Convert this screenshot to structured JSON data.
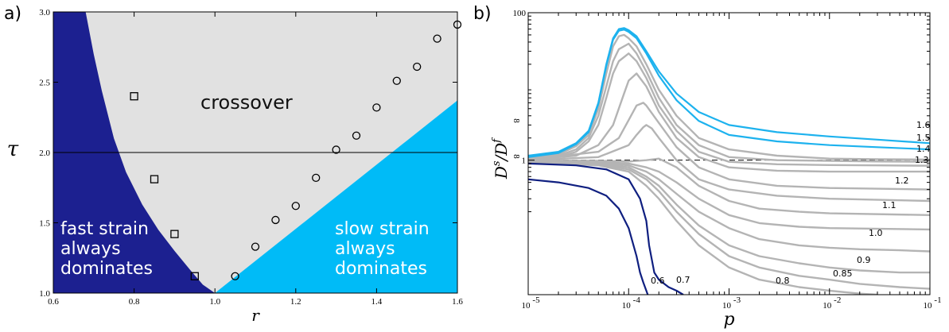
{
  "chart_data": [
    {
      "type": "scatter",
      "panel_label": "a)",
      "xlabel": "r",
      "ylabel": "τ",
      "xlim": [
        0.6,
        1.6
      ],
      "ylim": [
        1.0,
        3.0
      ],
      "x_ticks": [
        "0.6",
        "0.8",
        "1.0",
        "1.2",
        "1.4",
        "1.6"
      ],
      "y_ticks": [
        "1.0",
        "1.5",
        "2.0",
        "2.5",
        "3.0"
      ],
      "reference_line_y": 2.0,
      "regions": [
        {
          "name": "fast",
          "label_lines": [
            "fast strain",
            "always",
            "dominates"
          ],
          "color": "#1c2090"
        },
        {
          "name": "crossover",
          "label_lines": [
            "crossover"
          ],
          "color": "#e1e1e1"
        },
        {
          "name": "slow",
          "label_lines": [
            "slow strain",
            "always",
            "dominates"
          ],
          "color": "#00bbf7"
        }
      ],
      "fast_boundary": [
        [
          0.68,
          3.0
        ],
        [
          0.7,
          2.7
        ],
        [
          0.72,
          2.44
        ],
        [
          0.75,
          2.1
        ],
        [
          0.78,
          1.86
        ],
        [
          0.82,
          1.63
        ],
        [
          0.86,
          1.45
        ],
        [
          0.9,
          1.3
        ],
        [
          0.94,
          1.16
        ],
        [
          0.97,
          1.06
        ],
        [
          1.0,
          1.0
        ]
      ],
      "slow_boundary": [
        [
          1.0,
          1.0
        ],
        [
          1.6,
          2.37
        ]
      ],
      "series": [
        {
          "marker": "square",
          "x": [
            0.8,
            0.85,
            0.9,
            0.95
          ],
          "y": [
            2.4,
            1.81,
            1.42,
            1.12
          ]
        },
        {
          "marker": "circle",
          "x": [
            1.05,
            1.1,
            1.15,
            1.2,
            1.25,
            1.3,
            1.35,
            1.4,
            1.45,
            1.5,
            1.55,
            1.6
          ],
          "y": [
            1.12,
            1.33,
            1.52,
            1.62,
            1.82,
            2.02,
            2.12,
            2.32,
            2.51,
            2.61,
            2.81,
            2.91
          ]
        }
      ]
    },
    {
      "type": "line",
      "panel_label": "b)",
      "xlabel": "p",
      "ylabel": "D^s/D^f",
      "ylabel_parts": [
        "D",
        "s",
        "/D",
        "f"
      ],
      "log_x": true,
      "log_y": true,
      "xlim": [
        1e-05,
        0.1
      ],
      "ylim": [
        0.015,
        100
      ],
      "x_ticks": [
        {
          "value": 1e-05,
          "base": "10",
          "exp": "-5"
        },
        {
          "value": 0.0001,
          "base": "10",
          "exp": "-4"
        },
        {
          "value": 0.001,
          "base": "10",
          "exp": "-3"
        },
        {
          "value": 0.01,
          "base": "10",
          "exp": "-2"
        },
        {
          "value": 0.1,
          "base": "10",
          "exp": "-1"
        }
      ],
      "y_ticks": [
        {
          "value": 100,
          "label": "100"
        },
        {
          "value": 1,
          "label": "1"
        }
      ],
      "y_tick_infinity": [
        "8",
        "8"
      ],
      "reference_line_y": 1,
      "colors": {
        "gray": "#b4b4b4",
        "light_blue": "#1db2ee",
        "dark_blue": "#0f1f80"
      },
      "series": [
        {
          "label": "1.6",
          "color": "light_blue",
          "x": [
            1e-05,
            2e-05,
            3e-05,
            4e-05,
            5e-05,
            6e-05,
            7e-05,
            8e-05,
            9e-05,
            0.0001,
            0.00012,
            0.00015,
            0.0002,
            0.0003,
            0.0005,
            0.001,
            0.003,
            0.01,
            0.03,
            0.1
          ],
          "y": [
            1.15,
            1.3,
            1.7,
            2.5,
            6,
            20,
            45,
            60,
            62,
            58,
            48,
            30,
            16,
            8,
            4.5,
            3,
            2.4,
            2.1,
            1.9,
            1.7
          ]
        },
        {
          "label": "1.5",
          "color": "light_blue",
          "x": [
            1e-05,
            2e-05,
            3e-05,
            4e-05,
            5e-05,
            6e-05,
            7e-05,
            8e-05,
            9e-05,
            0.0001,
            0.00012,
            0.00015,
            0.0002,
            0.0003,
            0.0005,
            0.001,
            0.003,
            0.01,
            0.03,
            0.1
          ],
          "y": [
            1.1,
            1.25,
            1.65,
            2.4,
            5.8,
            19,
            43,
            57,
            59,
            55,
            45,
            28,
            14,
            6.5,
            3.4,
            2.2,
            1.8,
            1.6,
            1.5,
            1.4
          ]
        },
        {
          "label": "1.4",
          "color": "gray",
          "x": [
            1e-05,
            2e-05,
            3e-05,
            4e-05,
            5e-05,
            6e-05,
            7e-05,
            8e-05,
            9e-05,
            0.0001,
            0.00012,
            0.00015,
            0.0002,
            0.0003,
            0.0005,
            0.001,
            0.003,
            0.01,
            0.03,
            0.1
          ],
          "y": [
            1.08,
            1.2,
            1.55,
            2.2,
            5,
            15,
            35,
            48,
            50,
            45,
            35,
            20,
            9,
            4,
            2,
            1.4,
            1.15,
            1.05,
            1.03,
            1.02
          ]
        },
        {
          "label": "",
          "color": "gray",
          "x": [
            1e-05,
            2e-05,
            3e-05,
            4e-05,
            5e-05,
            6e-05,
            7e-05,
            8e-05,
            0.0001,
            0.00012,
            0.00015,
            0.0002,
            0.0003,
            0.0005,
            0.001,
            0.003,
            0.01,
            0.03,
            0.1
          ],
          "y": [
            1.05,
            1.15,
            1.4,
            2,
            4,
            10,
            22,
            32,
            38,
            28,
            16,
            7,
            3,
            1.6,
            1.1,
            1,
            0.98,
            0.96,
            0.95
          ]
        },
        {
          "label": "",
          "color": "gray",
          "x": [
            1e-05,
            2e-05,
            3e-05,
            4e-05,
            5e-05,
            6e-05,
            7e-05,
            8e-05,
            0.0001,
            0.00012,
            0.00015,
            0.0002,
            0.0003,
            0.0005,
            0.001,
            0.003,
            0.01,
            0.03,
            0.1
          ],
          "y": [
            1.03,
            1.1,
            1.3,
            1.8,
            3,
            7,
            15,
            22,
            28,
            22,
            13,
            5.5,
            2.5,
            1.3,
            0.95,
            0.88,
            0.86,
            0.85,
            0.84
          ]
        },
        {
          "label": "1.3",
          "color": "gray",
          "x": [
            1e-05,
            3e-05,
            5e-05,
            7e-05,
            9e-05,
            0.0001,
            0.00012,
            0.00015,
            0.0002,
            0.0003,
            0.0005,
            0.001,
            0.003,
            0.01,
            0.03,
            0.1
          ],
          "y": [
            1.02,
            1.15,
            1.6,
            3,
            8,
            12,
            15,
            10,
            4.5,
            2,
            1.1,
            0.8,
            0.72,
            0.7,
            0.7,
            0.7
          ]
        },
        {
          "label": "",
          "color": "gray",
          "x": [
            1e-05,
            5e-05,
            8e-05,
            0.0001,
            0.00012,
            0.00014,
            0.00015,
            0.0002,
            0.0003,
            0.0005,
            0.001,
            0.003,
            0.01,
            0.1
          ],
          "y": [
            1.01,
            1.3,
            2,
            3.5,
            5.5,
            6,
            5.5,
            3.2,
            1.5,
            0.8,
            0.55,
            0.45,
            0.42,
            0.4
          ]
        },
        {
          "label": "1.2",
          "color": "gray",
          "x": [
            1e-05,
            5e-05,
            0.0001,
            0.00012,
            0.00014,
            0.00015,
            0.00017,
            0.0002,
            0.0003,
            0.0005,
            0.001,
            0.003,
            0.01,
            0.1
          ],
          "y": [
            1,
            1.1,
            1.6,
            2.2,
            2.8,
            3,
            2.7,
            2,
            1,
            0.55,
            0.4,
            0.33,
            0.3,
            0.28
          ]
        },
        {
          "label": "",
          "color": "gray",
          "x": [
            1e-05,
            5e-05,
            0.0001,
            0.00015,
            0.0002,
            0.0003,
            0.0005,
            0.001,
            0.002,
            0.005,
            0.01,
            0.1
          ],
          "y": [
            0.99,
            0.98,
            0.96,
            1,
            1.05,
            0.8,
            0.45,
            0.28,
            0.22,
            0.2,
            0.19,
            0.18
          ]
        },
        {
          "label": "1.1",
          "color": "gray",
          "x": [
            1e-05,
            5e-05,
            0.0001,
            0.00015,
            0.0002,
            0.0003,
            0.0005,
            0.001,
            0.002,
            0.005,
            0.01,
            0.1
          ],
          "y": [
            0.98,
            0.95,
            0.9,
            0.8,
            0.7,
            0.5,
            0.3,
            0.18,
            0.14,
            0.125,
            0.12,
            0.115
          ]
        },
        {
          "label": "1.0",
          "color": "gray",
          "x": [
            1e-05,
            5e-05,
            0.0001,
            0.00015,
            0.0002,
            0.0003,
            0.0005,
            0.001,
            0.002,
            0.005,
            0.01,
            0.02,
            0.05,
            0.1
          ],
          "y": [
            0.97,
            0.93,
            0.85,
            0.7,
            0.55,
            0.35,
            0.2,
            0.12,
            0.085,
            0.07,
            0.065,
            0.062,
            0.06,
            0.058
          ]
        },
        {
          "label": "0.9",
          "color": "gray",
          "x": [
            1e-05,
            5e-05,
            0.0001,
            0.00015,
            0.0002,
            0.0003,
            0.0005,
            0.001,
            0.002,
            0.005,
            0.01,
            0.02,
            0.05,
            0.1
          ],
          "y": [
            0.96,
            0.9,
            0.8,
            0.6,
            0.45,
            0.25,
            0.13,
            0.07,
            0.05,
            0.04,
            0.035,
            0.032,
            0.03,
            0.03
          ]
        },
        {
          "label": "0.85",
          "color": "gray",
          "x": [
            1e-05,
            5e-05,
            0.0001,
            0.00015,
            0.0002,
            0.0003,
            0.0005,
            0.001,
            0.002,
            0.005,
            0.01,
            0.02,
            0.05,
            0.1
          ],
          "y": [
            0.95,
            0.88,
            0.75,
            0.55,
            0.38,
            0.2,
            0.1,
            0.05,
            0.035,
            0.027,
            0.024,
            0.021,
            0.019,
            0.018
          ]
        },
        {
          "label": "0.8",
          "color": "gray",
          "x": [
            1e-05,
            5e-05,
            0.0001,
            0.00015,
            0.0002,
            0.0003,
            0.0005,
            0.001,
            0.002,
            0.005,
            0.01,
            0.02,
            0.03
          ],
          "y": [
            0.94,
            0.85,
            0.7,
            0.45,
            0.3,
            0.15,
            0.07,
            0.035,
            0.024,
            0.019,
            0.017,
            0.0155,
            0.015
          ]
        },
        {
          "label": "0.7",
          "color": "dark_blue",
          "x": [
            1e-05,
            3e-05,
            6e-05,
            0.0001,
            0.00013,
            0.00015,
            0.00016,
            0.00018,
            0.0002,
            0.00025,
            0.0003,
            0.00035
          ],
          "y": [
            0.9,
            0.85,
            0.75,
            0.55,
            0.3,
            0.15,
            0.07,
            0.03,
            0.024,
            0.019,
            0.017,
            0.015
          ]
        },
        {
          "label": "0.6",
          "color": "dark_blue",
          "x": [
            1e-05,
            2e-05,
            4e-05,
            6e-05,
            8e-05,
            0.0001,
            0.00012,
            0.00013,
            0.00014,
            0.00015,
            0.000155
          ],
          "y": [
            0.55,
            0.5,
            0.42,
            0.33,
            0.22,
            0.12,
            0.05,
            0.03,
            0.022,
            0.017,
            0.015
          ]
        }
      ]
    }
  ]
}
